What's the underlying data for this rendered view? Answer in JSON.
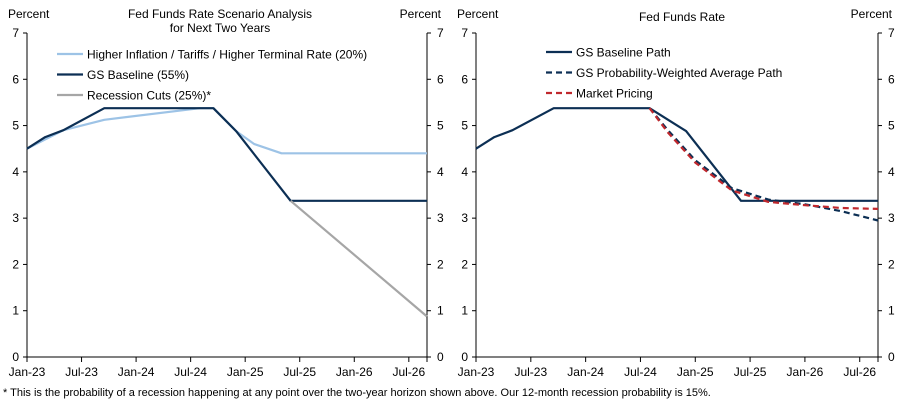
{
  "footnote": "* This is the probability of a recession happening at any point over the two-year horizon shown above.  Our 12-month recession probability is 15%.",
  "colors": {
    "light_blue": "#9dc3e6",
    "navy": "#0c2f54",
    "gray": "#a6a6a6",
    "red": "#c0282d",
    "axis": "#000000"
  },
  "chart_data": [
    {
      "type": "line",
      "title": "Fed Funds Rate Scenario Analysis",
      "subtitle": "for Next Two Years",
      "ylabel_left": "Percent",
      "ylabel_right": "Percent",
      "ylim": [
        0,
        7
      ],
      "yticks": [
        "0",
        "1",
        "2",
        "3",
        "4",
        "5",
        "6",
        "7"
      ],
      "xticks": [
        "Jan-23",
        "Jul-23",
        "Jan-24",
        "Jul-24",
        "Jan-25",
        "Jul-25",
        "Jan-26",
        "Jul-26"
      ],
      "xrange_months": [
        0,
        44
      ],
      "legend_position": "top-left",
      "series": [
        {
          "name": "Higher Inflation / Tariffs / Higher Terminal Rate (20%)",
          "color_key": "light_blue",
          "dash": "solid",
          "x": [
            0,
            4,
            8.5,
            19,
            20.5,
            23,
            25,
            28,
            44
          ],
          "y": [
            4.5,
            4.9,
            5.125,
            5.375,
            5.375,
            4.88,
            4.6,
            4.4,
            4.4
          ]
        },
        {
          "name": "GS Baseline (55%)",
          "color_key": "navy",
          "dash": "solid",
          "x": [
            0,
            2,
            4,
            8.5,
            19,
            20.5,
            23,
            29,
            44
          ],
          "y": [
            4.5,
            4.75,
            4.9,
            5.375,
            5.375,
            5.375,
            4.88,
            3.375,
            3.375
          ]
        },
        {
          "name": "Recession Cuts (25%)*",
          "color_key": "gray",
          "dash": "solid",
          "x": [
            29,
            44
          ],
          "y": [
            3.375,
            0.875
          ]
        }
      ]
    },
    {
      "type": "line",
      "title": "Fed Funds Rate",
      "ylabel_left": "Percent",
      "ylabel_right": "Percent",
      "ylim": [
        0,
        7
      ],
      "yticks": [
        "0",
        "1",
        "2",
        "3",
        "4",
        "5",
        "6",
        "7"
      ],
      "xticks": [
        "Jan-23",
        "Jul-23",
        "Jan-24",
        "Jul-24",
        "Jan-25",
        "Jul-25",
        "Jan-26",
        "Jul-26"
      ],
      "xrange_months": [
        0,
        44
      ],
      "legend_position": "top-left",
      "series": [
        {
          "name": "GS Baseline Path",
          "color_key": "navy",
          "dash": "solid",
          "x": [
            0,
            2,
            4,
            8.5,
            19,
            23,
            29,
            44
          ],
          "y": [
            4.5,
            4.75,
            4.9,
            5.375,
            5.375,
            4.88,
            3.375,
            3.375
          ]
        },
        {
          "name": "GS Probability-Weighted Average Path",
          "color_key": "navy",
          "dash": "dashed",
          "x": [
            19,
            21,
            24,
            28,
            32,
            36,
            40,
            44
          ],
          "y": [
            5.375,
            4.9,
            4.25,
            3.65,
            3.4,
            3.3,
            3.15,
            2.95
          ]
        },
        {
          "name": "Market Pricing",
          "color_key": "red",
          "dash": "dashed",
          "x": [
            19,
            21,
            24,
            28,
            32,
            36,
            40,
            44
          ],
          "y": [
            5.375,
            4.85,
            4.2,
            3.6,
            3.35,
            3.28,
            3.22,
            3.2
          ]
        }
      ]
    }
  ]
}
